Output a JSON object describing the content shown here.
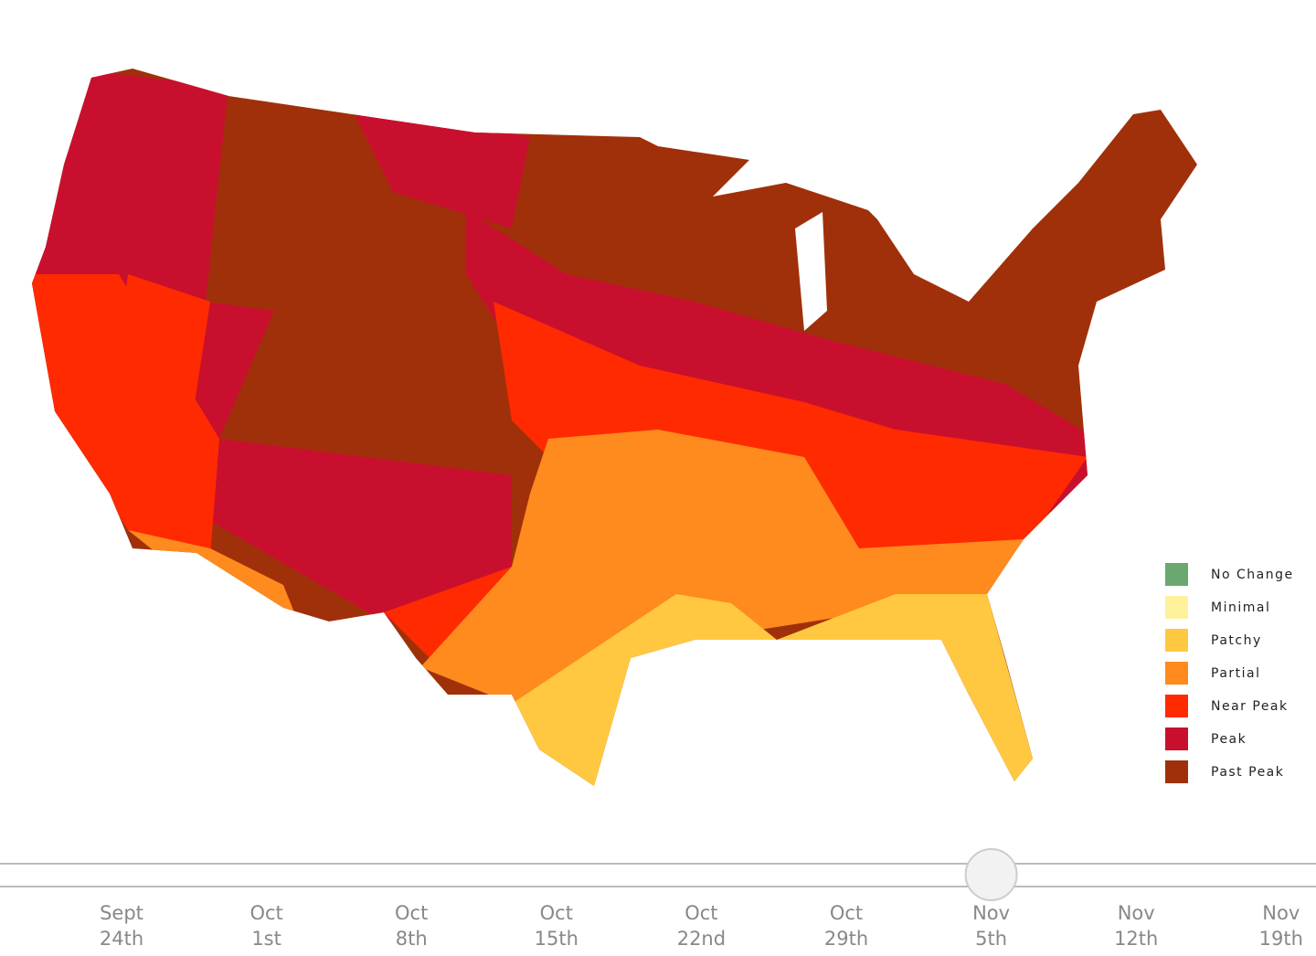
{
  "legend": {
    "items": [
      {
        "label": "No Change",
        "color": "#6aa870"
      },
      {
        "label": "Minimal",
        "color": "#fff19a"
      },
      {
        "label": "Patchy",
        "color": "#ffc840"
      },
      {
        "label": "Partial",
        "color": "#ff8a1e"
      },
      {
        "label": "Near Peak",
        "color": "#ff2a00"
      },
      {
        "label": "Peak",
        "color": "#c8102e"
      },
      {
        "label": "Past Peak",
        "color": "#a0300a"
      }
    ]
  },
  "slider": {
    "dates": [
      {
        "month": "Sept",
        "day": "24th"
      },
      {
        "month": "Oct",
        "day": "1st"
      },
      {
        "month": "Oct",
        "day": "8th"
      },
      {
        "month": "Oct",
        "day": "15th"
      },
      {
        "month": "Oct",
        "day": "22nd"
      },
      {
        "month": "Oct",
        "day": "29th"
      },
      {
        "month": "Nov",
        "day": "5th"
      },
      {
        "month": "Nov",
        "day": "12th"
      },
      {
        "month": "Nov",
        "day": "19th"
      }
    ],
    "selected_index": 6
  }
}
